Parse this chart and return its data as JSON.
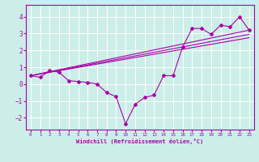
{
  "xlabel": "Windchill (Refroidissement éolien,°C)",
  "background_color": "#cceee8",
  "line_color": "#aa00aa",
  "xlim": [
    -0.5,
    23.5
  ],
  "ylim": [
    -2.7,
    4.7
  ],
  "xticks": [
    0,
    1,
    2,
    3,
    4,
    5,
    6,
    7,
    8,
    9,
    10,
    11,
    12,
    13,
    14,
    15,
    16,
    17,
    18,
    19,
    20,
    21,
    22,
    23
  ],
  "yticks": [
    -2,
    -1,
    0,
    1,
    2,
    3,
    4
  ],
  "grid_color": "#ffffff",
  "series1_x": [
    0,
    1,
    2,
    3,
    4,
    5,
    6,
    7,
    8,
    9,
    10,
    11,
    12,
    13,
    14,
    15,
    16,
    17,
    18,
    19,
    20,
    21,
    22,
    23
  ],
  "series1_y": [
    0.5,
    0.4,
    0.8,
    0.7,
    0.2,
    0.15,
    0.1,
    0.0,
    -0.5,
    -0.75,
    -2.35,
    -1.2,
    -0.8,
    -0.65,
    0.5,
    0.5,
    2.2,
    3.3,
    3.3,
    2.95,
    3.5,
    3.4,
    4.0,
    3.2
  ],
  "series2_x": [
    0,
    23
  ],
  "series2_y": [
    0.5,
    3.2
  ],
  "series3_x": [
    0,
    23
  ],
  "series3_y": [
    0.5,
    2.95
  ],
  "series4_x": [
    0,
    23
  ],
  "series4_y": [
    0.5,
    2.75
  ],
  "marker": "D",
  "linewidth": 0.8,
  "markersize": 2.0,
  "xlabel_fontsize": 5.0,
  "xtick_fontsize": 4.2,
  "ytick_fontsize": 5.5
}
